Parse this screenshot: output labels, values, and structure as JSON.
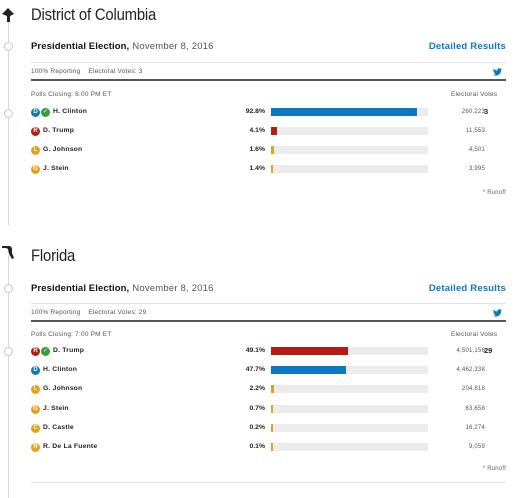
{
  "colors": {
    "democrat": "#0a78c2",
    "republican": "#b51d14",
    "libertarian": "#e3a21a",
    "green": "#e3a21a",
    "winner_check": "#3a9b3a",
    "link": "#0a78c2"
  },
  "sections": [
    {
      "state": "District of Columbia",
      "state_icon": "dc-state-shape-icon",
      "race": "Presidential Election,",
      "date": "November 8, 2016",
      "detailed": "Detailed Results",
      "reporting": "100% Reporting",
      "electoral": "Electoral Votes: 3",
      "polls": "Polls Closing: 8:00 PM ET",
      "ev_header": "Electoral Votes",
      "runoff": "* Runoff",
      "candidates": [
        {
          "badge": "D",
          "name": "H. Clinton",
          "pct": "92.8%",
          "share": 92.8,
          "votes": "260,223",
          "ev": "3",
          "winner": true,
          "color": "#0a78c2"
        },
        {
          "badge": "R",
          "name": "D. Trump",
          "pct": "4.1%",
          "share": 4.1,
          "votes": "11,553",
          "ev": "",
          "winner": false,
          "color": "#b51d14"
        },
        {
          "badge": "L",
          "name": "G. Johnson",
          "pct": "1.6%",
          "share": 1.6,
          "votes": "4,501",
          "ev": "",
          "winner": false,
          "color": "#e3a21a"
        },
        {
          "badge": "G",
          "name": "J. Stein",
          "pct": "1.4%",
          "share": 1.4,
          "votes": "3,995",
          "ev": "",
          "winner": false,
          "color": "#e3a21a"
        }
      ]
    },
    {
      "state": "Florida",
      "state_icon": "florida-state-shape-icon",
      "race": "Presidential Election,",
      "date": "November 8, 2016",
      "detailed": "Detailed Results",
      "reporting": "100% Reporting",
      "electoral": "Electoral Votes: 29",
      "polls": "Polls Closing: 7:00 PM ET",
      "ev_header": "Electoral Votes",
      "runoff": "* Runoff",
      "candidates": [
        {
          "badge": "R",
          "name": "D. Trump",
          "pct": "49.1%",
          "share": 49.1,
          "votes": "4,501,156",
          "ev": "29",
          "winner": true,
          "color": "#b51d14"
        },
        {
          "badge": "D",
          "name": "H. Clinton",
          "pct": "47.7%",
          "share": 47.7,
          "votes": "4,462,338",
          "ev": "",
          "winner": false,
          "color": "#0a78c2"
        },
        {
          "badge": "L",
          "name": "G. Johnson",
          "pct": "2.2%",
          "share": 2.2,
          "votes": "204,818",
          "ev": "",
          "winner": false,
          "color": "#e3a21a"
        },
        {
          "badge": "G",
          "name": "J. Stein",
          "pct": "0.7%",
          "share": 0.7,
          "votes": "63,658",
          "ev": "",
          "winner": false,
          "color": "#e3a21a"
        },
        {
          "badge": "C",
          "name": "D. Castle",
          "pct": "0.2%",
          "share": 0.2,
          "votes": "16,274",
          "ev": "",
          "winner": false,
          "color": "#e3a21a"
        },
        {
          "badge": "R",
          "name": "R. De La Fuente",
          "pct": "0.1%",
          "share": 0.1,
          "votes": "9,059",
          "ev": "",
          "winner": false,
          "color": "#e3a21a"
        }
      ]
    }
  ]
}
